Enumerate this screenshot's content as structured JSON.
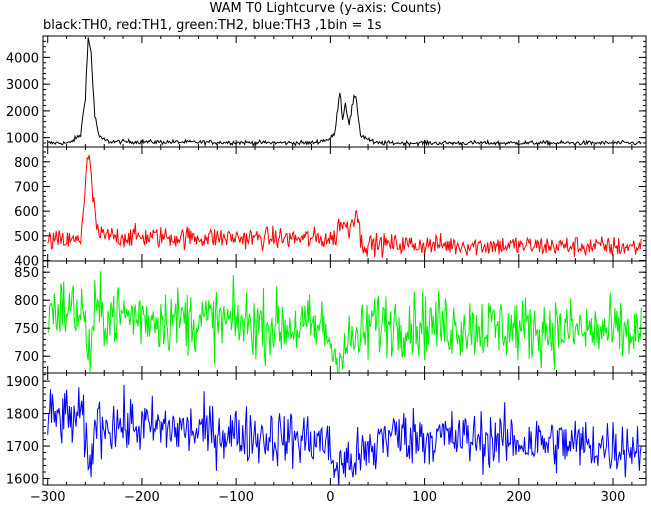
{
  "title": "WAM T0 Lightcurve (y-axis: Counts)",
  "subtitle": "black:TH0, red:TH1, green:TH2, blue:TH3 ,1bin = 1s",
  "chart_data": {
    "type": "line",
    "title": "WAM T0 Lightcurve (y-axis: Counts)",
    "subtitle": "black:TH0, red:TH1, green:TH2, blue:TH3 ,1bin = 1s",
    "xlim": [
      -305,
      335
    ],
    "xticks": [
      -300,
      -200,
      -100,
      0,
      100,
      200,
      300
    ],
    "x_tick_labels": [
      "−300",
      "−200",
      "−100",
      "0",
      "100",
      "200",
      "300"
    ],
    "bin_width_s": 1,
    "grid": false,
    "panels": [
      {
        "name": "TH0",
        "color": "#000000",
        "ylim": [
          650,
          4800
        ],
        "yticks": [
          1000,
          2000,
          3000,
          4000
        ],
        "y_tick_labels": [
          "1000",
          "2000",
          "3000",
          "4000"
        ],
        "profile": {
          "baseline": 800,
          "noise": 40,
          "features": [
            {
              "x": -275,
              "y": 850
            },
            {
              "x": -265,
              "y": 1100
            },
            {
              "x": -260,
              "y": 2600
            },
            {
              "x": -257,
              "y": 4700
            },
            {
              "x": -254,
              "y": 4200
            },
            {
              "x": -250,
              "y": 1800
            },
            {
              "x": -245,
              "y": 1000
            },
            {
              "x": -235,
              "y": 850
            },
            {
              "x": -20,
              "y": 800
            },
            {
              "x": 0,
              "y": 950
            },
            {
              "x": 5,
              "y": 1200
            },
            {
              "x": 10,
              "y": 2800
            },
            {
              "x": 13,
              "y": 1700
            },
            {
              "x": 16,
              "y": 2300
            },
            {
              "x": 20,
              "y": 1500
            },
            {
              "x": 25,
              "y": 2500
            },
            {
              "x": 28,
              "y": 2300
            },
            {
              "x": 32,
              "y": 1100
            },
            {
              "x": 45,
              "y": 850
            }
          ]
        }
      },
      {
        "name": "TH1",
        "color": "#ff0000",
        "ylim": [
          398,
          860
        ],
        "yticks": [
          400,
          500,
          600,
          700,
          800
        ],
        "y_tick_labels": [
          "400",
          "500",
          "600",
          "700",
          "800"
        ],
        "profile": {
          "baseline": 480,
          "noise": 22,
          "trend": -0.04,
          "features": [
            {
              "x": -265,
              "y": 490
            },
            {
              "x": -262,
              "y": 620
            },
            {
              "x": -258,
              "y": 820
            },
            {
              "x": -255,
              "y": 780
            },
            {
              "x": -250,
              "y": 580
            },
            {
              "x": -245,
              "y": 500
            },
            {
              "x": 5,
              "y": 500
            },
            {
              "x": 10,
              "y": 570
            },
            {
              "x": 20,
              "y": 540
            },
            {
              "x": 28,
              "y": 630
            },
            {
              "x": 32,
              "y": 500
            }
          ]
        }
      },
      {
        "name": "TH2",
        "color": "#00ee00",
        "ylim": [
          670,
          870
        ],
        "yticks": [
          700,
          750,
          800,
          850
        ],
        "y_tick_labels": [
          "700",
          "750",
          "800",
          "850"
        ],
        "profile": {
          "baseline": 785,
          "noise": 30,
          "trend": -0.07,
          "features": [
            {
              "x": -262,
              "y": 780
            },
            {
              "x": -256,
              "y": 700
            },
            {
              "x": -250,
              "y": 780
            },
            {
              "x": -5,
              "y": 770
            },
            {
              "x": 5,
              "y": 720
            },
            {
              "x": 20,
              "y": 745
            },
            {
              "x": 40,
              "y": 765
            }
          ]
        }
      },
      {
        "name": "TH3",
        "color": "#0000ff",
        "ylim": [
          1580,
          1925
        ],
        "yticks": [
          1600,
          1700,
          1800,
          1900
        ],
        "y_tick_labels": [
          "1600",
          "1700",
          "1800",
          "1900"
        ],
        "profile": {
          "baseline": 1790,
          "noise": 45,
          "trend": -0.15,
          "features": [
            {
              "x": -262,
              "y": 1780
            },
            {
              "x": -256,
              "y": 1610
            },
            {
              "x": -250,
              "y": 1780
            },
            {
              "x": -5,
              "y": 1760
            },
            {
              "x": 5,
              "y": 1680
            },
            {
              "x": 25,
              "y": 1710
            },
            {
              "x": 50,
              "y": 1740
            }
          ]
        }
      }
    ]
  }
}
